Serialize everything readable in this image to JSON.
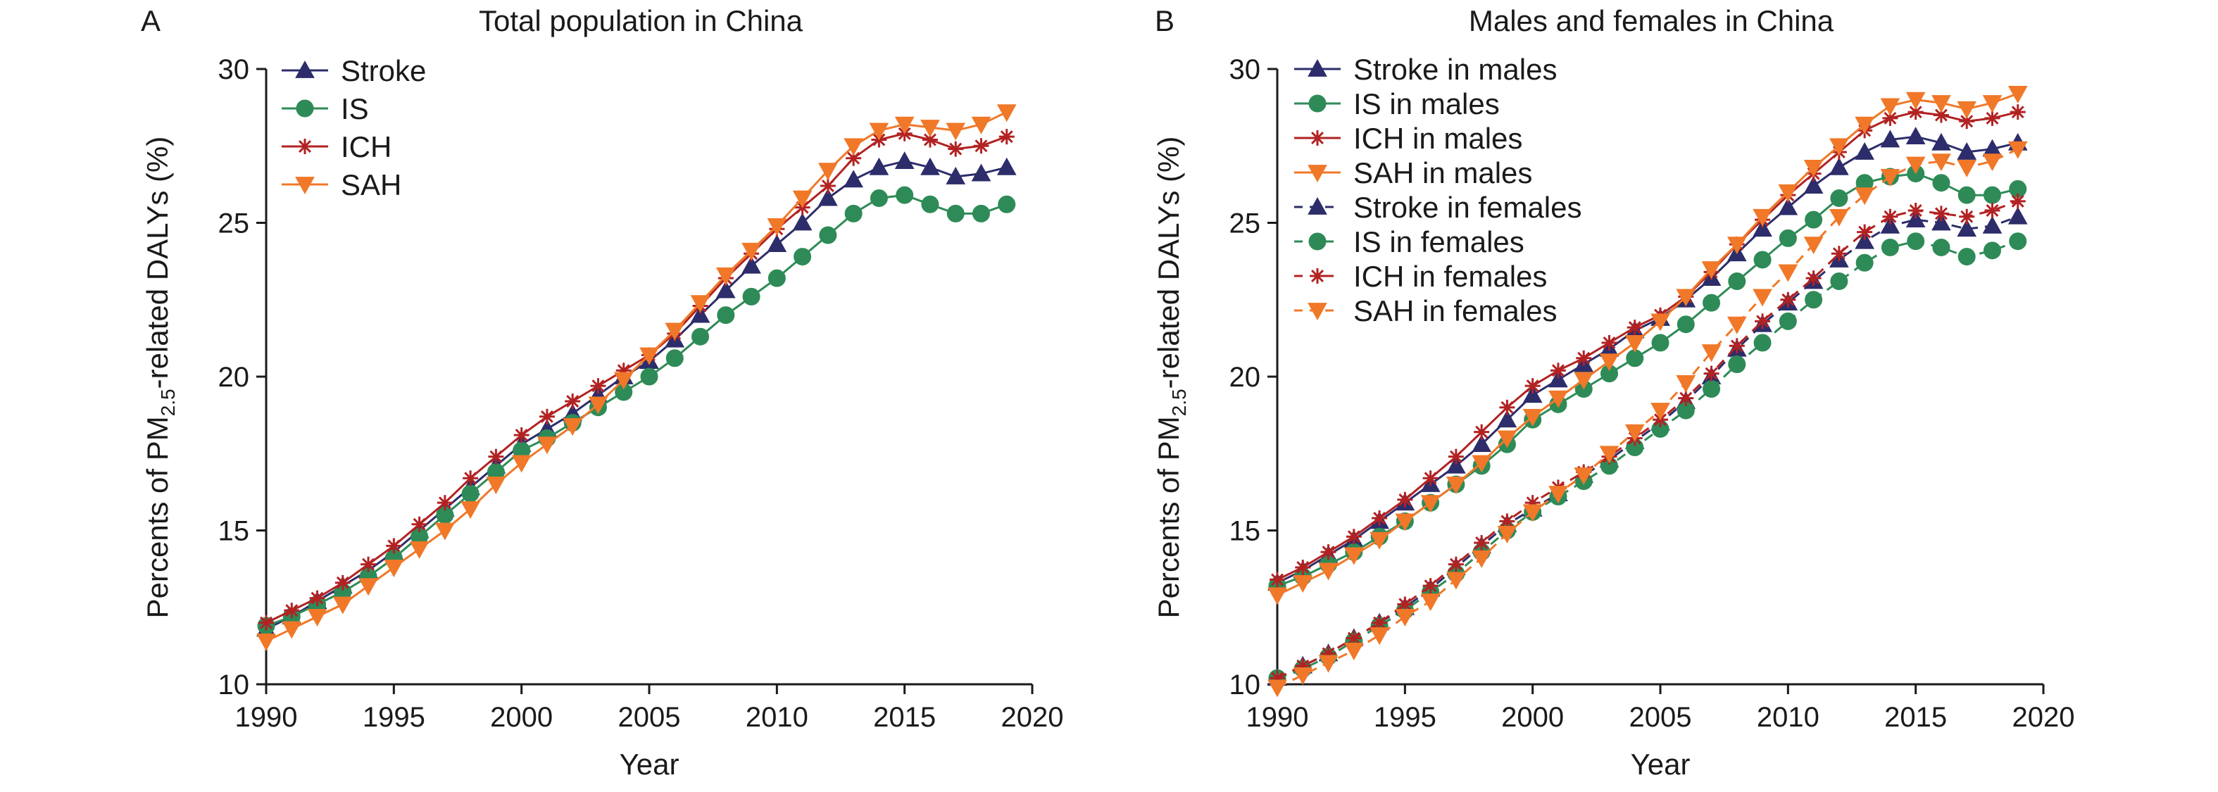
{
  "colors": {
    "stroke": "#2d2d6b",
    "is": "#2e8b57",
    "ich": "#b22222",
    "sah": "#f07828"
  },
  "chart_data": [
    {
      "type": "line",
      "panel_letter": "A",
      "title": "Total population in China",
      "xlabel": "Year",
      "ylabel_prefix": "Percents of PM",
      "ylabel_sub": "2.5",
      "ylabel_suffix": "-related DALYs (%)",
      "xlim": [
        1990,
        2020
      ],
      "ylim": [
        10,
        30
      ],
      "xticks": [
        1990,
        1995,
        2000,
        2005,
        2010,
        2015,
        2020
      ],
      "yticks": [
        10,
        15,
        20,
        25,
        30
      ],
      "grid": false,
      "legend_position": "top-left",
      "x": [
        1990,
        1991,
        1992,
        1993,
        1994,
        1995,
        1996,
        1997,
        1998,
        1999,
        2000,
        2001,
        2002,
        2003,
        2004,
        2005,
        2006,
        2007,
        2008,
        2009,
        2010,
        2011,
        2012,
        2013,
        2014,
        2015,
        2016,
        2017,
        2018,
        2019
      ],
      "series": [
        {
          "name": "Stroke",
          "color_key": "stroke",
          "marker": "triangle-up",
          "dash": "solid",
          "values": [
            11.8,
            12.2,
            12.7,
            13.2,
            13.7,
            14.3,
            15.0,
            15.7,
            16.4,
            17.1,
            17.8,
            18.3,
            18.8,
            19.4,
            20.0,
            20.5,
            21.2,
            22.0,
            22.8,
            23.6,
            24.3,
            25.0,
            25.8,
            26.4,
            26.8,
            27.0,
            26.8,
            26.5,
            26.6,
            26.8
          ]
        },
        {
          "name": "IS",
          "color_key": "is",
          "marker": "circle",
          "dash": "solid",
          "values": [
            11.9,
            12.2,
            12.6,
            13.0,
            13.5,
            14.1,
            14.8,
            15.5,
            16.2,
            16.9,
            17.6,
            18.0,
            18.5,
            19.0,
            19.5,
            20.0,
            20.6,
            21.3,
            22.0,
            22.6,
            23.2,
            23.9,
            24.6,
            25.3,
            25.8,
            25.9,
            25.6,
            25.3,
            25.3,
            25.6
          ]
        },
        {
          "name": "ICH",
          "color_key": "ich",
          "marker": "asterisk",
          "dash": "solid",
          "values": [
            12.0,
            12.4,
            12.8,
            13.3,
            13.9,
            14.5,
            15.2,
            15.9,
            16.7,
            17.4,
            18.1,
            18.7,
            19.2,
            19.7,
            20.2,
            20.7,
            21.4,
            22.3,
            23.2,
            24.0,
            24.8,
            25.5,
            26.2,
            27.1,
            27.7,
            27.9,
            27.7,
            27.4,
            27.5,
            27.8
          ]
        },
        {
          "name": "SAH",
          "color_key": "sah",
          "marker": "triangle-down",
          "dash": "solid",
          "values": [
            11.4,
            11.8,
            12.2,
            12.6,
            13.2,
            13.8,
            14.4,
            15.0,
            15.7,
            16.5,
            17.2,
            17.8,
            18.4,
            19.1,
            19.9,
            20.7,
            21.5,
            22.4,
            23.3,
            24.1,
            24.9,
            25.8,
            26.7,
            27.5,
            28.0,
            28.2,
            28.1,
            28.0,
            28.2,
            28.6
          ]
        }
      ]
    },
    {
      "type": "line",
      "panel_letter": "B",
      "title": "Males and females in China",
      "xlabel": "Year",
      "ylabel_prefix": "Percents of PM",
      "ylabel_sub": "2.5",
      "ylabel_suffix": "-related DALYs (%)",
      "xlim": [
        1990,
        2020
      ],
      "ylim": [
        10,
        30
      ],
      "xticks": [
        1990,
        1995,
        2000,
        2005,
        2010,
        2015,
        2020
      ],
      "yticks": [
        10,
        15,
        20,
        25,
        30
      ],
      "grid": false,
      "legend_position": "top-left",
      "x": [
        1990,
        1991,
        1992,
        1993,
        1994,
        1995,
        1996,
        1997,
        1998,
        1999,
        2000,
        2001,
        2002,
        2003,
        2004,
        2005,
        2006,
        2007,
        2008,
        2009,
        2010,
        2011,
        2012,
        2013,
        2014,
        2015,
        2016,
        2017,
        2018,
        2019
      ],
      "series": [
        {
          "name": "Stroke in males",
          "color_key": "stroke",
          "marker": "triangle-up",
          "dash": "solid",
          "values": [
            13.3,
            13.7,
            14.2,
            14.7,
            15.3,
            15.9,
            16.5,
            17.1,
            17.8,
            18.6,
            19.4,
            19.9,
            20.4,
            20.9,
            21.5,
            21.9,
            22.5,
            23.2,
            24.0,
            24.8,
            25.5,
            26.2,
            26.8,
            27.3,
            27.7,
            27.8,
            27.6,
            27.3,
            27.4,
            27.6
          ]
        },
        {
          "name": "IS in males",
          "color_key": "is",
          "marker": "circle",
          "dash": "solid",
          "values": [
            13.2,
            13.5,
            13.9,
            14.3,
            14.8,
            15.3,
            15.9,
            16.5,
            17.1,
            17.8,
            18.6,
            19.1,
            19.6,
            20.1,
            20.6,
            21.1,
            21.7,
            22.4,
            23.1,
            23.8,
            24.5,
            25.1,
            25.8,
            26.3,
            26.5,
            26.6,
            26.3,
            25.9,
            25.9,
            26.1
          ]
        },
        {
          "name": "ICH in males",
          "color_key": "ich",
          "marker": "asterisk",
          "dash": "solid",
          "values": [
            13.4,
            13.8,
            14.3,
            14.8,
            15.4,
            16.0,
            16.7,
            17.4,
            18.2,
            19.0,
            19.7,
            20.2,
            20.6,
            21.1,
            21.6,
            22.0,
            22.6,
            23.4,
            24.3,
            25.1,
            25.9,
            26.6,
            27.3,
            28.0,
            28.4,
            28.6,
            28.5,
            28.3,
            28.4,
            28.6
          ]
        },
        {
          "name": "SAH in males",
          "color_key": "sah",
          "marker": "triangle-down",
          "dash": "solid",
          "values": [
            12.9,
            13.3,
            13.7,
            14.2,
            14.7,
            15.3,
            15.9,
            16.5,
            17.2,
            18.0,
            18.7,
            19.3,
            19.9,
            20.5,
            21.1,
            21.8,
            22.6,
            23.5,
            24.3,
            25.2,
            26.0,
            26.8,
            27.5,
            28.2,
            28.8,
            29.0,
            28.9,
            28.7,
            28.9,
            29.2
          ]
        },
        {
          "name": "Stroke in females",
          "color_key": "stroke",
          "marker": "triangle-up",
          "dash": "dashed",
          "values": [
            10.2,
            10.6,
            11.0,
            11.5,
            12.0,
            12.5,
            13.1,
            13.8,
            14.5,
            15.2,
            15.7,
            16.2,
            16.8,
            17.3,
            17.9,
            18.5,
            19.2,
            20.0,
            20.9,
            21.7,
            22.4,
            23.1,
            23.8,
            24.4,
            24.9,
            25.1,
            25.0,
            24.8,
            24.9,
            25.2
          ]
        },
        {
          "name": "IS in females",
          "color_key": "is",
          "marker": "circle",
          "dash": "dashed",
          "values": [
            10.2,
            10.5,
            10.9,
            11.4,
            11.9,
            12.4,
            13.0,
            13.6,
            14.3,
            15.0,
            15.6,
            16.1,
            16.6,
            17.1,
            17.7,
            18.3,
            18.9,
            19.6,
            20.4,
            21.1,
            21.8,
            22.5,
            23.1,
            23.7,
            24.2,
            24.4,
            24.2,
            23.9,
            24.1,
            24.4
          ]
        },
        {
          "name": "ICH in females",
          "color_key": "ich",
          "marker": "asterisk",
          "dash": "dashed",
          "values": [
            10.2,
            10.6,
            11.0,
            11.5,
            12.0,
            12.6,
            13.2,
            13.9,
            14.6,
            15.3,
            15.9,
            16.4,
            16.9,
            17.4,
            18.0,
            18.6,
            19.3,
            20.1,
            21.0,
            21.8,
            22.5,
            23.2,
            24.0,
            24.7,
            25.2,
            25.4,
            25.3,
            25.2,
            25.4,
            25.7
          ]
        },
        {
          "name": "SAH in females",
          "color_key": "sah",
          "marker": "triangle-down",
          "dash": "dashed",
          "values": [
            9.9,
            10.3,
            10.7,
            11.1,
            11.6,
            12.2,
            12.7,
            13.4,
            14.1,
            14.9,
            15.6,
            16.2,
            16.8,
            17.5,
            18.2,
            18.9,
            19.8,
            20.8,
            21.7,
            22.6,
            23.4,
            24.3,
            25.2,
            25.9,
            26.5,
            26.9,
            27.0,
            26.8,
            27.0,
            27.4
          ]
        }
      ]
    }
  ]
}
